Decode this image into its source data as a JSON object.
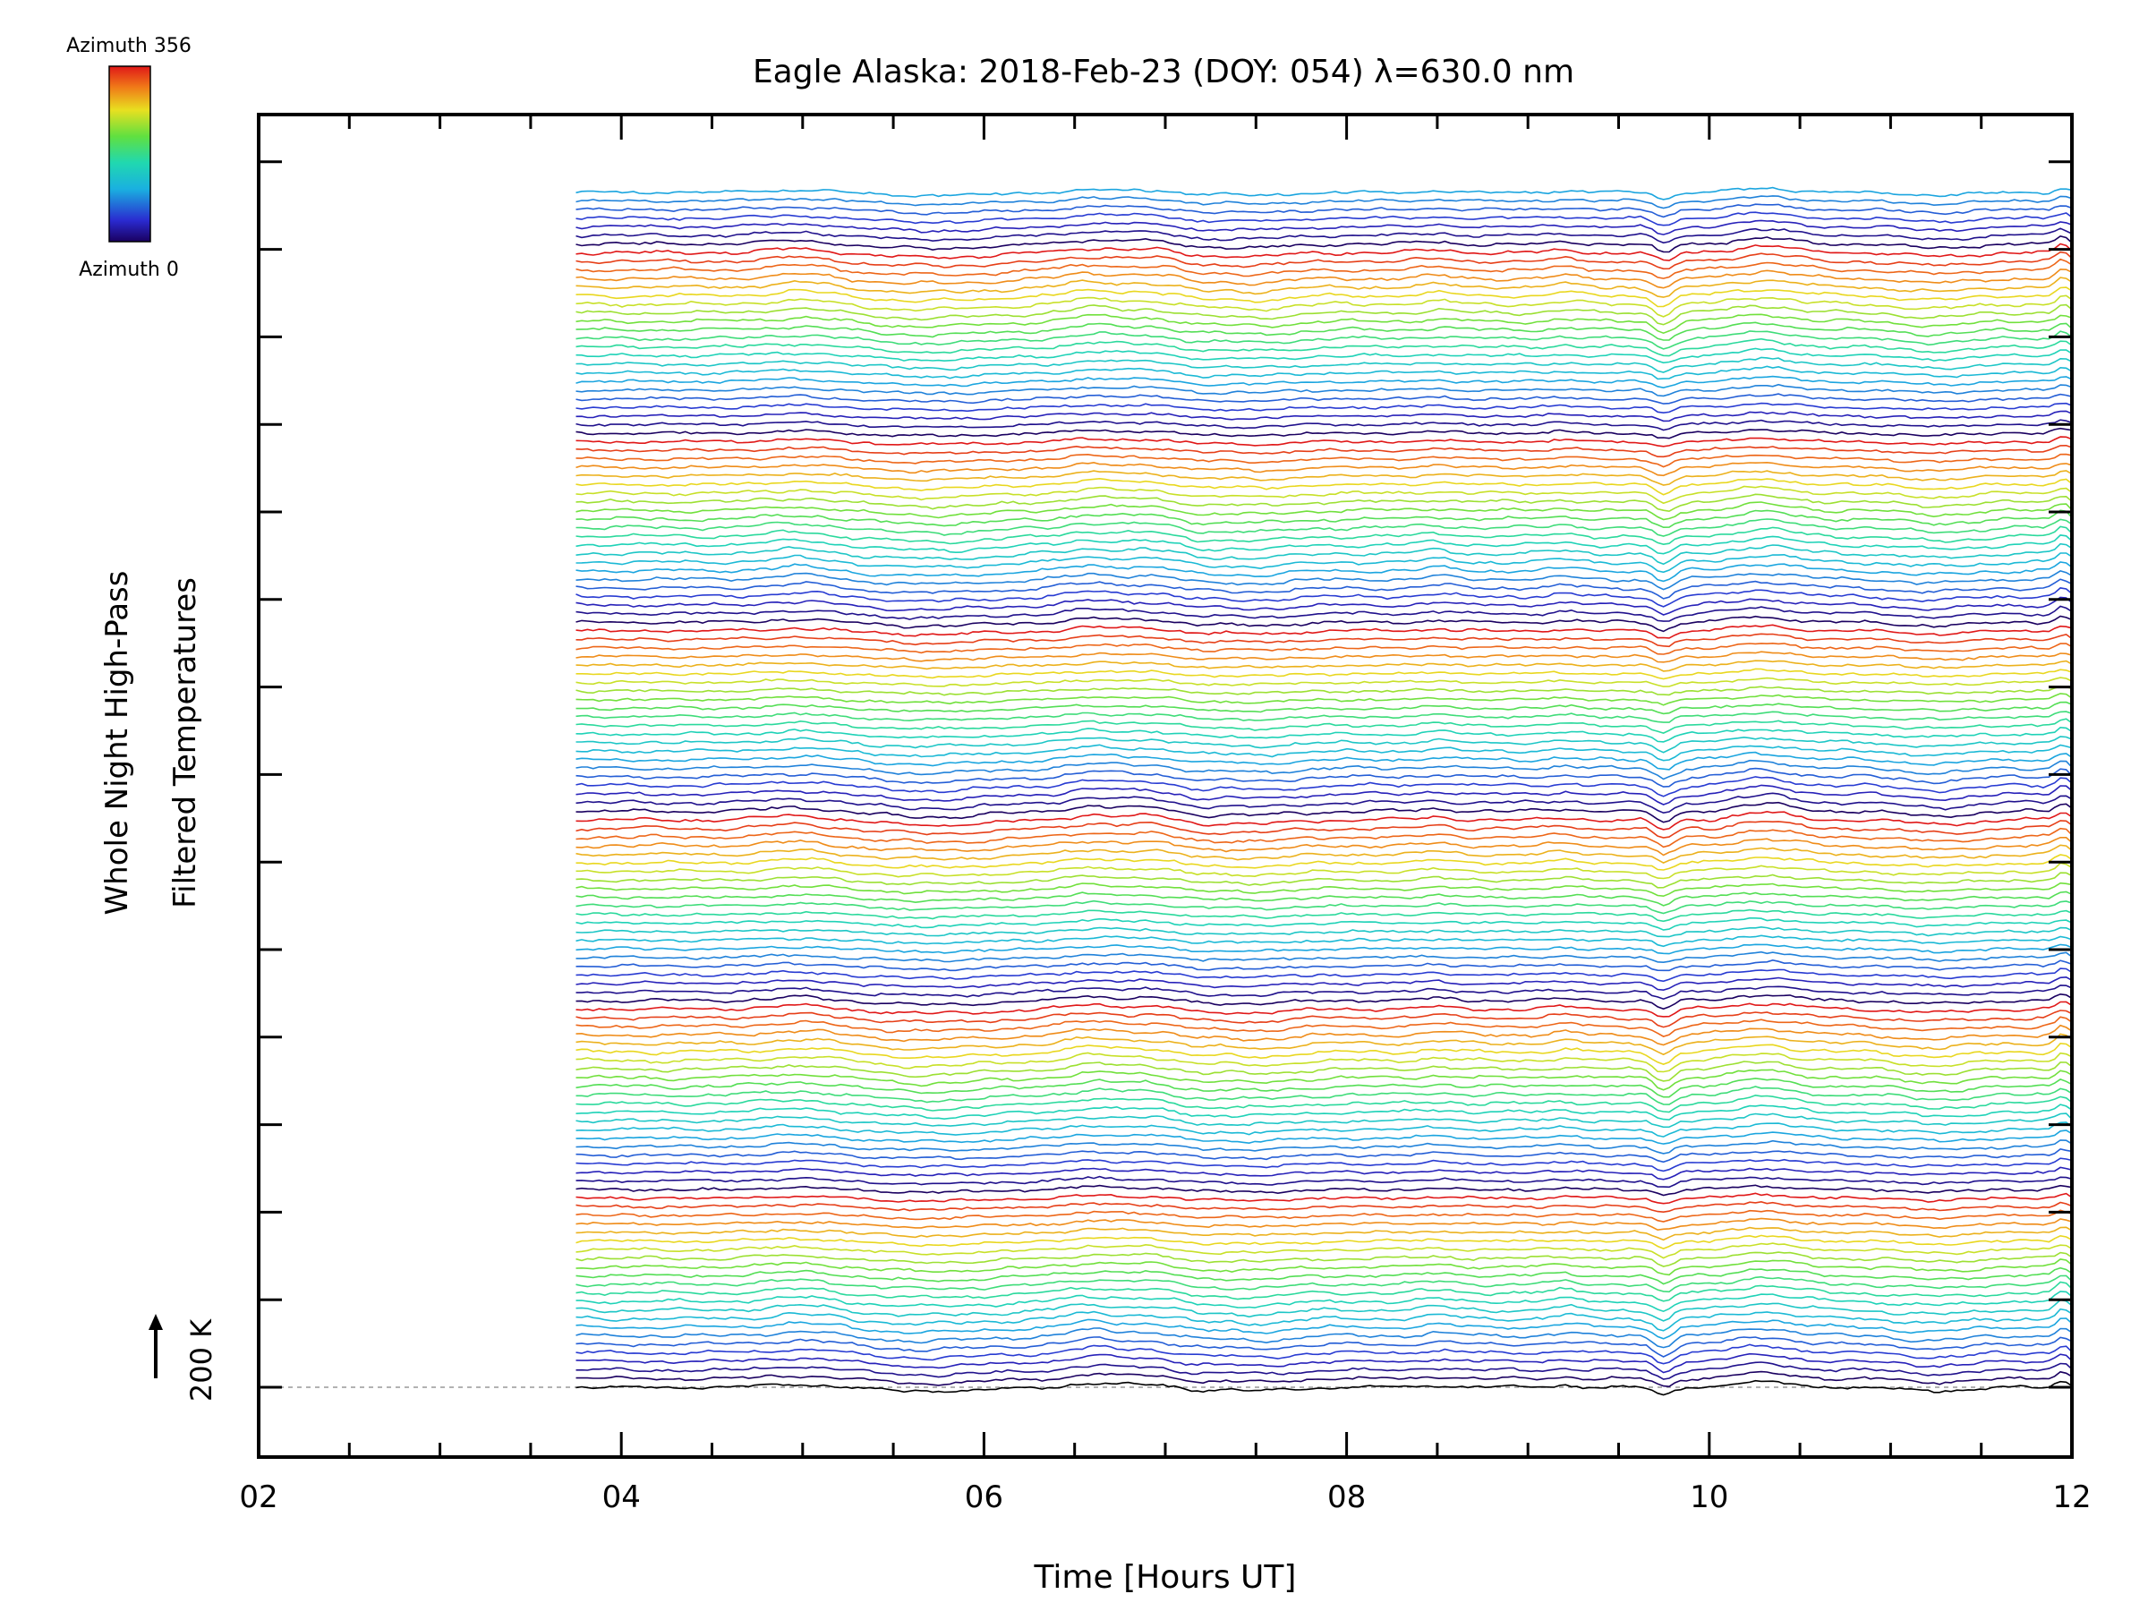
{
  "chart_data": {
    "type": "line",
    "title": "Eagle Alaska: 2018-Feb-23 (DOY: 054) λ=630.0 nm",
    "xlabel": "Time [Hours UT]",
    "ylabel_line1": "Whole Night High-Pass",
    "ylabel_line2": "Filtered Temperatures",
    "xlim": [
      2,
      12
    ],
    "x_ticks": [
      "02",
      "04",
      "06",
      "08",
      "10",
      "12"
    ],
    "x_tick_values": [
      2,
      4,
      6,
      8,
      10,
      12
    ],
    "data_time_range": [
      3.75,
      12
    ],
    "scale_bar_label": "200 K",
    "legend": {
      "top_label": "Azimuth 356",
      "bottom_label": "Azimuth 0",
      "colormap": "rainbow (purple → blue → cyan → green → yellow → orange → red)"
    },
    "colors": {
      "low_azimuth": "#2a0a8c",
      "mid_azimuth": "#3ccf7a",
      "high_azimuth": "#e8401a",
      "baseline": "#000000"
    },
    "stacked_series_count": 140,
    "grid": false
  }
}
